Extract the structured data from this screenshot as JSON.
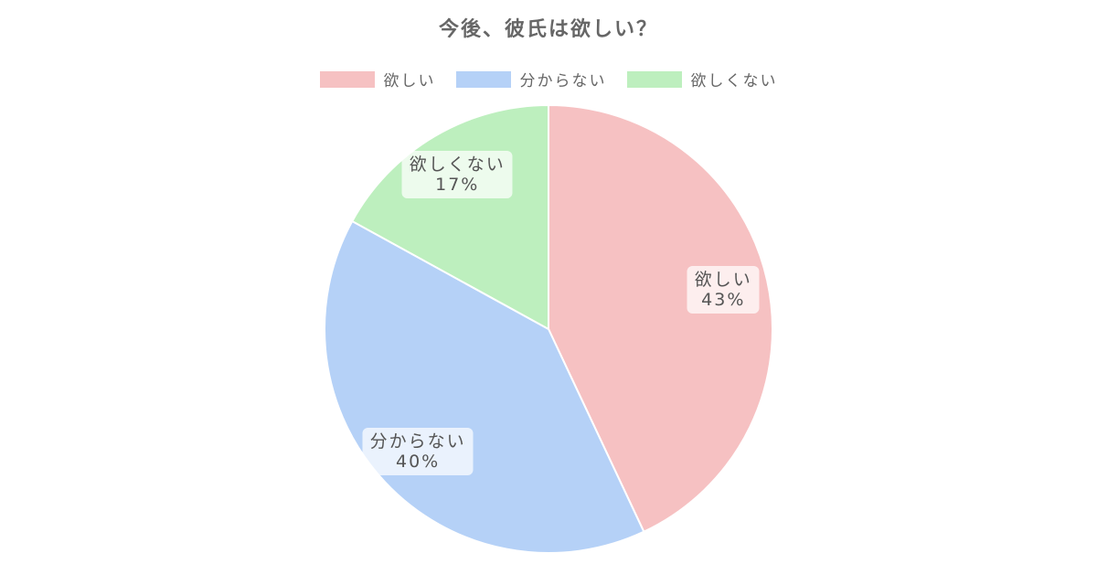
{
  "chart_data": {
    "type": "pie",
    "title": "今後、彼氏は欲しい？",
    "legend_position": "top",
    "slices": [
      {
        "label": "欲しい",
        "value": 43,
        "value_label": "43%",
        "color": "#f6c1c2"
      },
      {
        "label": "分からない",
        "value": 40,
        "value_label": "40%",
        "color": "#b5d1f7"
      },
      {
        "label": "欲しくない",
        "value": 17,
        "value_label": "17%",
        "color": "#bdefbe"
      }
    ]
  }
}
